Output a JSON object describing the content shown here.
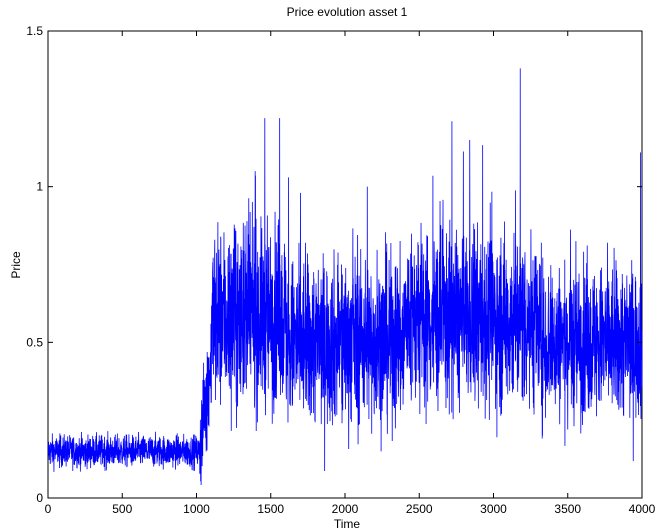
{
  "chart_data": {
    "type": "line",
    "title": "Price evolution asset 1",
    "xlabel": "Time",
    "ylabel": "Price",
    "xlim": [
      0,
      4000
    ],
    "ylim": [
      0,
      1.5
    ],
    "xticks": [
      0,
      500,
      1000,
      1500,
      2000,
      2500,
      3000,
      3500,
      4000
    ],
    "xtick_labels": [
      "0",
      "500",
      "1000",
      "1500",
      "2000",
      "2500",
      "3000",
      "3500",
      "4000"
    ],
    "yticks": [
      0,
      0.5,
      1,
      1.5
    ],
    "ytick_labels": [
      "0",
      "0.5",
      "1",
      "1.5"
    ],
    "grid": false,
    "series": [
      {
        "color": "#0000ff",
        "points_description": "noisy price series of 4000 time steps",
        "regimes": [
          {
            "x_start": 0,
            "x_end": 1020,
            "mean": 0.15,
            "noise": 0.025
          },
          {
            "x_start": 1020,
            "x_end": 1100,
            "mean_start": 0.15,
            "mean_end": 0.45,
            "noise": 0.08
          },
          {
            "x_start": 1100,
            "x_end": 1600,
            "mean": 0.58,
            "noise": 0.14
          },
          {
            "x_start": 1600,
            "x_end": 2400,
            "mean": 0.5,
            "noise": 0.13
          },
          {
            "x_start": 2400,
            "x_end": 3300,
            "mean": 0.57,
            "noise": 0.14
          },
          {
            "x_start": 3300,
            "x_end": 4000,
            "mean": 0.5,
            "noise": 0.12
          }
        ],
        "spikes": [
          {
            "x": 1460,
            "y": 1.22
          },
          {
            "x": 1560,
            "y": 1.22
          },
          {
            "x": 1395,
            "y": 1.05
          },
          {
            "x": 1620,
            "y": 1.03
          },
          {
            "x": 2720,
            "y": 1.21
          },
          {
            "x": 2840,
            "y": 1.15
          },
          {
            "x": 3180,
            "y": 1.38
          },
          {
            "x": 3990,
            "y": 1.11
          },
          {
            "x": 2150,
            "y": 1.0
          },
          {
            "x": 1700,
            "y": 0.98
          }
        ],
        "min_points": [
          {
            "x": 250,
            "y": 0.1
          },
          {
            "x": 3500,
            "y": 0.22
          },
          {
            "x": 1980,
            "y": 0.24
          }
        ]
      }
    ]
  }
}
